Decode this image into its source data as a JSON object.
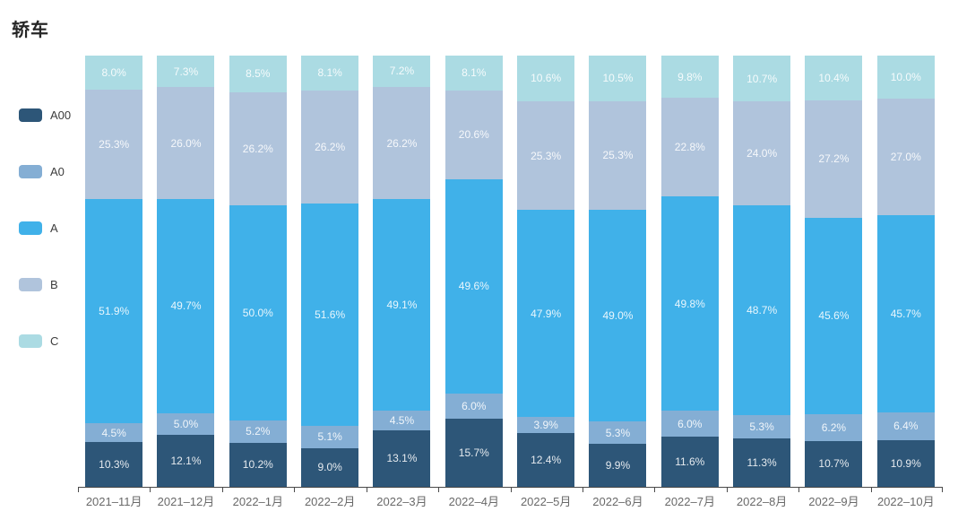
{
  "title": "轿车",
  "chart_data": {
    "type": "bar",
    "stacked": true,
    "percent": true,
    "title": "轿车",
    "legend_position": "left",
    "grid": false,
    "value_suffix": "%",
    "ylim": [
      0,
      100
    ],
    "categories": [
      "2021–11月",
      "2021–12月",
      "2022–1月",
      "2022–2月",
      "2022–3月",
      "2022–4月",
      "2022–5月",
      "2022–6月",
      "2022–7月",
      "2022–8月",
      "2022–9月",
      "2022–10月"
    ],
    "series": [
      {
        "name": "A00",
        "color": "#2d5678",
        "values": [
          10.3,
          12.1,
          10.2,
          9.0,
          13.1,
          15.7,
          12.4,
          9.9,
          11.6,
          11.3,
          10.7,
          10.9
        ]
      },
      {
        "name": "A0",
        "color": "#84aed4",
        "values": [
          4.5,
          5.0,
          5.2,
          5.1,
          4.5,
          6.0,
          3.9,
          5.3,
          6.0,
          5.3,
          6.2,
          6.4
        ]
      },
      {
        "name": "A",
        "color": "#40b1e9",
        "values": [
          51.9,
          49.7,
          50.0,
          51.6,
          49.1,
          49.6,
          47.9,
          49.0,
          49.8,
          48.7,
          45.6,
          45.7
        ]
      },
      {
        "name": "B",
        "color": "#b0c4dc",
        "values": [
          25.3,
          26.0,
          26.2,
          26.2,
          26.2,
          20.6,
          25.3,
          25.3,
          22.8,
          24.0,
          27.2,
          27.0
        ]
      },
      {
        "name": "C",
        "color": "#abdbe3",
        "values": [
          8.0,
          7.3,
          8.5,
          8.1,
          7.2,
          8.1,
          10.6,
          10.5,
          9.8,
          10.7,
          10.4,
          10.0
        ]
      }
    ],
    "label_color": "rgba(255,255,255,0.88)",
    "axis_color": "#4a4a4a",
    "tick_label_color": "#696969"
  },
  "legend_layout": {
    "top_start": 121,
    "spacing": 63
  }
}
